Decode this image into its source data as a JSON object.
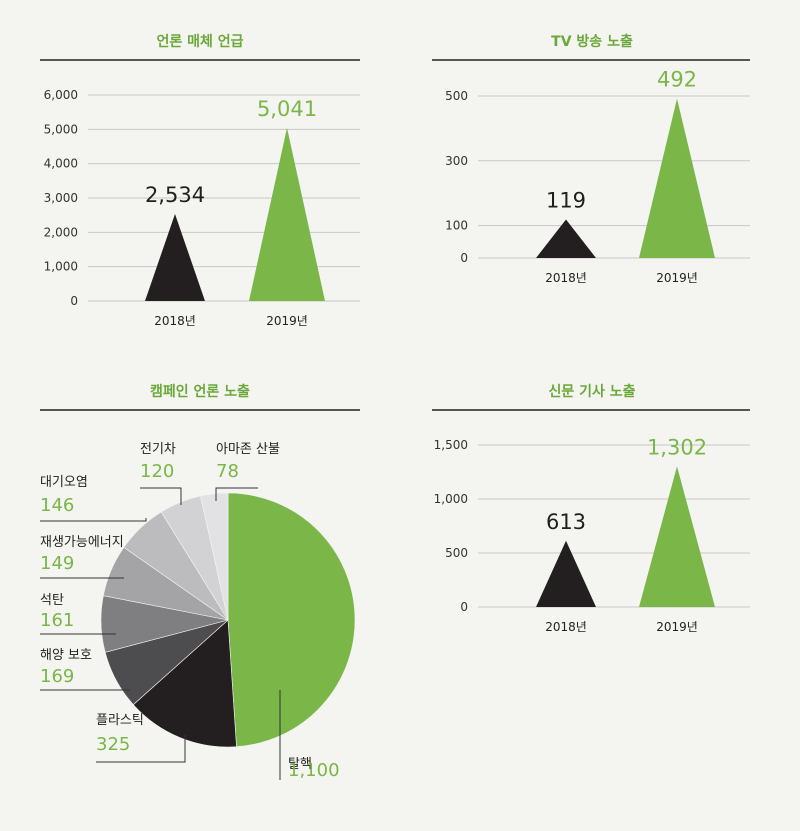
{
  "colors": {
    "y2018": "#231f20",
    "y2019": "#7ab648",
    "grid": "#c8c8c8",
    "rule": "#222222",
    "title": "#6ba83a",
    "pie": [
      "#7ab648",
      "#231f20",
      "#4d4d4f",
      "#7f7f81",
      "#a4a4a6",
      "#bcbcbe",
      "#d2d2d4",
      "#e2e2e4"
    ]
  },
  "chart_data": [
    {
      "type": "bar",
      "title": "언론 매체 언급",
      "categories": [
        "2018년",
        "2019년"
      ],
      "values": [
        2534,
        5041
      ],
      "value_labels": [
        "2,534",
        "5,041"
      ],
      "yticks": [
        "0",
        "1,000",
        "2,000",
        "3,000",
        "4,000",
        "5,000",
        "6,000"
      ],
      "ytick_values": [
        0,
        1000,
        2000,
        3000,
        4000,
        5000,
        6000
      ],
      "ylim": [
        0,
        6000
      ],
      "grid": true
    },
    {
      "type": "bar",
      "title": "TV 방송 노출",
      "categories": [
        "2018년",
        "2019년"
      ],
      "values": [
        119,
        492
      ],
      "value_labels": [
        "119",
        "492"
      ],
      "yticks": [
        "0",
        "100",
        "300",
        "500"
      ],
      "ytick_values": [
        0,
        100,
        300,
        500
      ],
      "ylim": [
        0,
        500
      ],
      "grid": true
    },
    {
      "type": "pie",
      "title": "캠페인 언론 노출",
      "slices": [
        {
          "label": "탈핵",
          "value": 1100,
          "value_label": "1,100"
        },
        {
          "label": "플라스틱",
          "value": 325,
          "value_label": "325"
        },
        {
          "label": "해양 보호",
          "value": 169,
          "value_label": "169"
        },
        {
          "label": "석탄",
          "value": 161,
          "value_label": "161"
        },
        {
          "label": "재생가능에너지",
          "value": 149,
          "value_label": "149"
        },
        {
          "label": "대기오염",
          "value": 146,
          "value_label": "146"
        },
        {
          "label": "전기차",
          "value": 120,
          "value_label": "120"
        },
        {
          "label": "아마존 산불",
          "value": 78,
          "value_label": "78"
        }
      ]
    },
    {
      "type": "bar",
      "title": "신문 기사 노출",
      "categories": [
        "2018년",
        "2019년"
      ],
      "values": [
        613,
        1302
      ],
      "value_labels": [
        "613",
        "1,302"
      ],
      "yticks": [
        "0",
        "500",
        "1,000",
        "1,500"
      ],
      "ytick_values": [
        0,
        500,
        1000,
        1500
      ],
      "ylim": [
        0,
        1500
      ],
      "grid": true
    }
  ]
}
